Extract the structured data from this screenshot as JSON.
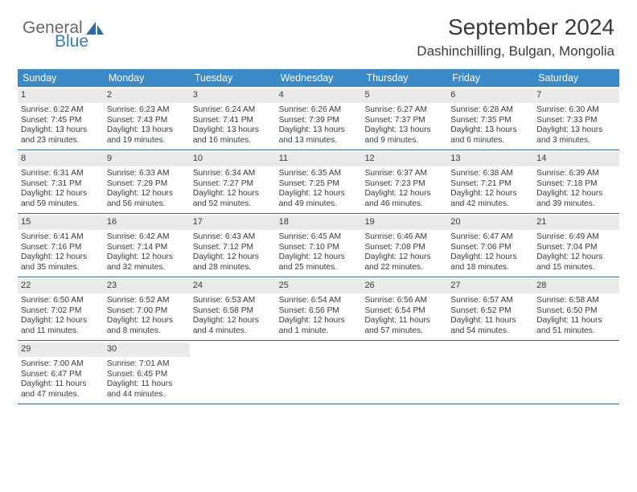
{
  "logo": {
    "text1": "General",
    "text2": "Blue",
    "sail_color": "#2d6aa3"
  },
  "title": "September 2024",
  "location": "Dashinchilling, Bulgan, Mongolia",
  "colors": {
    "header_bg": "#3a8ac7",
    "header_text": "#ffffff",
    "daynum_bg": "#eaeaea",
    "rule": "#3a6aa0",
    "text": "#3a3a3a"
  },
  "day_labels": [
    "Sunday",
    "Monday",
    "Tuesday",
    "Wednesday",
    "Thursday",
    "Friday",
    "Saturday"
  ],
  "weeks": [
    [
      {
        "num": "1",
        "sunrise": "6:22 AM",
        "sunset": "7:45 PM",
        "daylight": "13 hours and 23 minutes."
      },
      {
        "num": "2",
        "sunrise": "6:23 AM",
        "sunset": "7:43 PM",
        "daylight": "13 hours and 19 minutes."
      },
      {
        "num": "3",
        "sunrise": "6:24 AM",
        "sunset": "7:41 PM",
        "daylight": "13 hours and 16 minutes."
      },
      {
        "num": "4",
        "sunrise": "6:26 AM",
        "sunset": "7:39 PM",
        "daylight": "13 hours and 13 minutes."
      },
      {
        "num": "5",
        "sunrise": "6:27 AM",
        "sunset": "7:37 PM",
        "daylight": "13 hours and 9 minutes."
      },
      {
        "num": "6",
        "sunrise": "6:28 AM",
        "sunset": "7:35 PM",
        "daylight": "13 hours and 6 minutes."
      },
      {
        "num": "7",
        "sunrise": "6:30 AM",
        "sunset": "7:33 PM",
        "daylight": "13 hours and 3 minutes."
      }
    ],
    [
      {
        "num": "8",
        "sunrise": "6:31 AM",
        "sunset": "7:31 PM",
        "daylight": "12 hours and 59 minutes."
      },
      {
        "num": "9",
        "sunrise": "6:33 AM",
        "sunset": "7:29 PM",
        "daylight": "12 hours and 56 minutes."
      },
      {
        "num": "10",
        "sunrise": "6:34 AM",
        "sunset": "7:27 PM",
        "daylight": "12 hours and 52 minutes."
      },
      {
        "num": "11",
        "sunrise": "6:35 AM",
        "sunset": "7:25 PM",
        "daylight": "12 hours and 49 minutes."
      },
      {
        "num": "12",
        "sunrise": "6:37 AM",
        "sunset": "7:23 PM",
        "daylight": "12 hours and 46 minutes."
      },
      {
        "num": "13",
        "sunrise": "6:38 AM",
        "sunset": "7:21 PM",
        "daylight": "12 hours and 42 minutes."
      },
      {
        "num": "14",
        "sunrise": "6:39 AM",
        "sunset": "7:18 PM",
        "daylight": "12 hours and 39 minutes."
      }
    ],
    [
      {
        "num": "15",
        "sunrise": "6:41 AM",
        "sunset": "7:16 PM",
        "daylight": "12 hours and 35 minutes."
      },
      {
        "num": "16",
        "sunrise": "6:42 AM",
        "sunset": "7:14 PM",
        "daylight": "12 hours and 32 minutes."
      },
      {
        "num": "17",
        "sunrise": "6:43 AM",
        "sunset": "7:12 PM",
        "daylight": "12 hours and 28 minutes."
      },
      {
        "num": "18",
        "sunrise": "6:45 AM",
        "sunset": "7:10 PM",
        "daylight": "12 hours and 25 minutes."
      },
      {
        "num": "19",
        "sunrise": "6:46 AM",
        "sunset": "7:08 PM",
        "daylight": "12 hours and 22 minutes."
      },
      {
        "num": "20",
        "sunrise": "6:47 AM",
        "sunset": "7:06 PM",
        "daylight": "12 hours and 18 minutes."
      },
      {
        "num": "21",
        "sunrise": "6:49 AM",
        "sunset": "7:04 PM",
        "daylight": "12 hours and 15 minutes."
      }
    ],
    [
      {
        "num": "22",
        "sunrise": "6:50 AM",
        "sunset": "7:02 PM",
        "daylight": "12 hours and 11 minutes."
      },
      {
        "num": "23",
        "sunrise": "6:52 AM",
        "sunset": "7:00 PM",
        "daylight": "12 hours and 8 minutes."
      },
      {
        "num": "24",
        "sunrise": "6:53 AM",
        "sunset": "6:58 PM",
        "daylight": "12 hours and 4 minutes."
      },
      {
        "num": "25",
        "sunrise": "6:54 AM",
        "sunset": "6:56 PM",
        "daylight": "12 hours and 1 minute."
      },
      {
        "num": "26",
        "sunrise": "6:56 AM",
        "sunset": "6:54 PM",
        "daylight": "11 hours and 57 minutes."
      },
      {
        "num": "27",
        "sunrise": "6:57 AM",
        "sunset": "6:52 PM",
        "daylight": "11 hours and 54 minutes."
      },
      {
        "num": "28",
        "sunrise": "6:58 AM",
        "sunset": "6:50 PM",
        "daylight": "11 hours and 51 minutes."
      }
    ],
    [
      {
        "num": "29",
        "sunrise": "7:00 AM",
        "sunset": "6:47 PM",
        "daylight": "11 hours and 47 minutes."
      },
      {
        "num": "30",
        "sunrise": "7:01 AM",
        "sunset": "6:45 PM",
        "daylight": "11 hours and 44 minutes."
      },
      null,
      null,
      null,
      null,
      null
    ]
  ],
  "labels": {
    "sunrise_prefix": "Sunrise: ",
    "sunset_prefix": "Sunset: ",
    "daylight_prefix": "Daylight: "
  }
}
